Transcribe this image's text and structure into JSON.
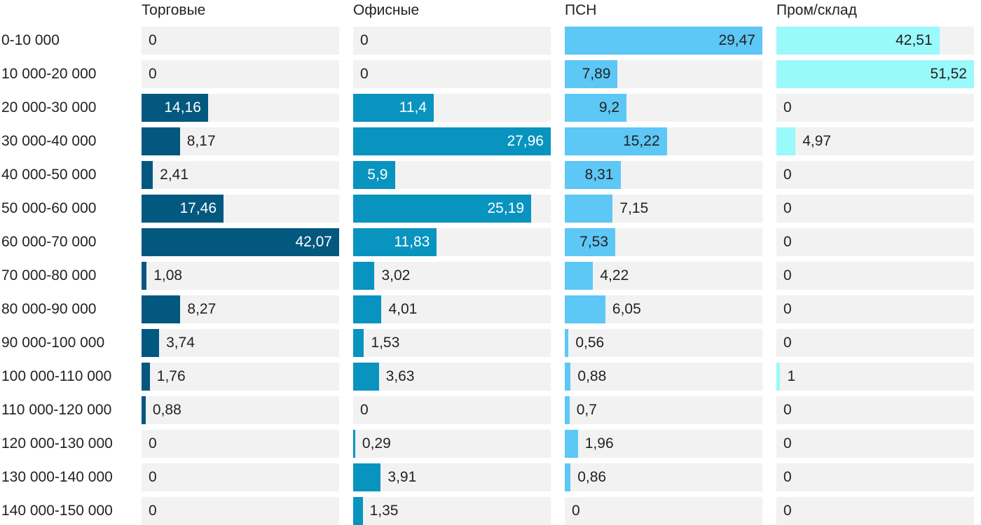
{
  "chart_data": {
    "type": "bar",
    "orientation": "horizontal",
    "layout": "small-multiples",
    "categories": [
      "0-10 000",
      "10 000-20 000",
      "20 000-30 000",
      "30 000-40 000",
      "40 000-50 000",
      "50 000-60 000",
      "60 000-70 000",
      "70 000-80 000",
      "80 000-90 000",
      "90 000-100 000",
      "100 000-110 000",
      "110 000-120 000",
      "120 000-130 000",
      "130 000-140 000",
      "140 000-150 000"
    ],
    "series": [
      {
        "name": "Торговые",
        "color": "#03587f",
        "text_inside_color": "#ffffff",
        "values": [
          0,
          0,
          14.16,
          8.17,
          2.41,
          17.46,
          42.07,
          1.08,
          8.27,
          3.74,
          1.76,
          0.88,
          0,
          0,
          0
        ],
        "labels": [
          "0",
          "0",
          "14,16",
          "8,17",
          "2,41",
          "17,46",
          "42,07",
          "1,08",
          "8,27",
          "3,74",
          "1,76",
          "0,88",
          "0",
          "0",
          "0"
        ]
      },
      {
        "name": "Офисные",
        "color": "#0894bf",
        "text_inside_color": "#ffffff",
        "values": [
          0,
          0,
          11.4,
          27.96,
          5.9,
          25.19,
          11.83,
          3.02,
          4.01,
          1.53,
          3.63,
          0,
          0.29,
          3.91,
          1.35
        ],
        "labels": [
          "0",
          "0",
          "11,4",
          "27,96",
          "5,9",
          "25,19",
          "11,83",
          "3,02",
          "4,01",
          "1,53",
          "3,63",
          "0",
          "0,29",
          "3,91",
          "1,35"
        ]
      },
      {
        "name": "ПСН",
        "color": "#5dc7f5",
        "text_inside_color": "#222222",
        "values": [
          29.47,
          7.89,
          9.2,
          15.22,
          8.31,
          7.15,
          7.53,
          4.22,
          6.05,
          0.56,
          0.88,
          0.7,
          1.96,
          0.86,
          0
        ],
        "labels": [
          "29,47",
          "7,89",
          "9,2",
          "15,22",
          "8,31",
          "7,15",
          "7,53",
          "4,22",
          "6,05",
          "0,56",
          "0,88",
          "0,7",
          "1,96",
          "0,86",
          "0"
        ]
      },
      {
        "name": "Пром/склад",
        "color": "#9af9fb",
        "text_inside_color": "#222222",
        "values": [
          42.51,
          51.52,
          0,
          4.97,
          0,
          0,
          0,
          0,
          0,
          0,
          1,
          0,
          0,
          0,
          0
        ],
        "labels": [
          "42,51",
          "51,52",
          "0",
          "4,97",
          "0",
          "0",
          "0",
          "0",
          "0",
          "0",
          "1",
          "0",
          "0",
          "0",
          "0"
        ]
      }
    ],
    "track_color": "#f2f2f2",
    "text_color": "#222222",
    "title": "",
    "xlabel": "",
    "ylabel": ""
  }
}
